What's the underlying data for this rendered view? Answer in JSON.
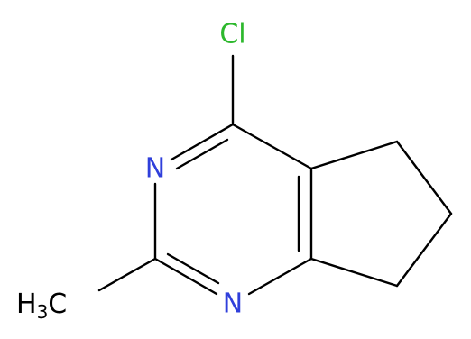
{
  "atoms": [
    {
      "label": "Cl"
    },
    {
      "label": "N"
    },
    {
      "label": "N"
    },
    {
      "parts": [
        "H",
        "3",
        "C"
      ]
    }
  ]
}
